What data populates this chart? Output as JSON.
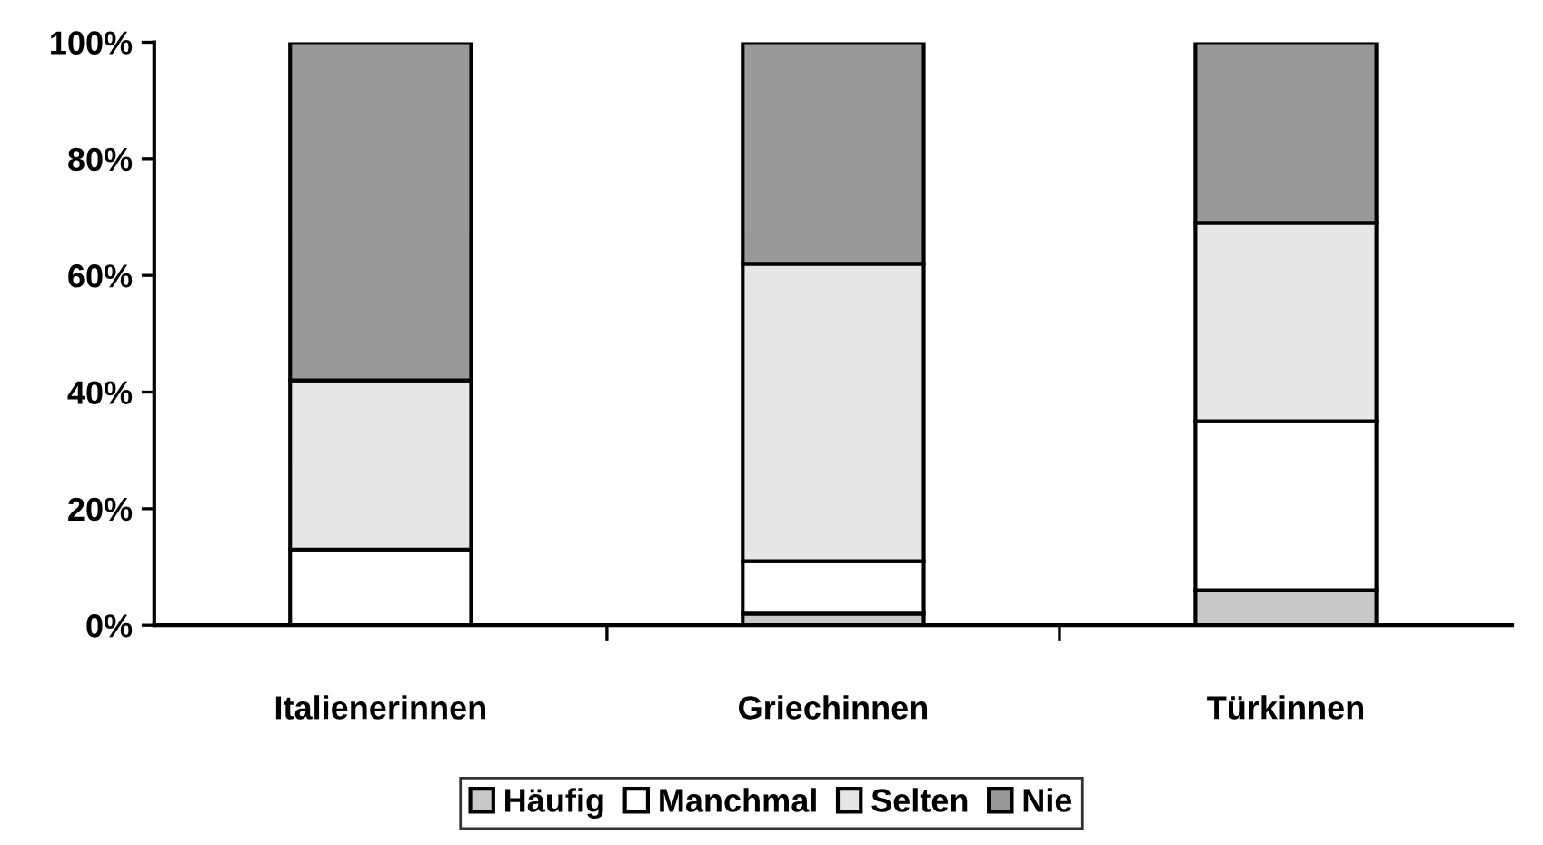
{
  "chart_data": {
    "type": "bar",
    "stacked": true,
    "categories": [
      "Italienerinnen",
      "Griechinnen",
      "Türkinnen"
    ],
    "series": [
      {
        "name": "Häufig",
        "color": "#c8c8c8",
        "values": [
          0,
          2,
          6
        ]
      },
      {
        "name": "Manchmal",
        "color": "#ffffff",
        "values": [
          13,
          9,
          29
        ]
      },
      {
        "name": "Selten",
        "color": "#e6e6e6",
        "values": [
          29,
          51,
          34
        ]
      },
      {
        "name": "Nie",
        "color": "#999999",
        "values": [
          58,
          38,
          31
        ]
      }
    ],
    "ylim": [
      0,
      100
    ],
    "yticks": [
      {
        "value": 0,
        "label": "0%"
      },
      {
        "value": 20,
        "label": "20%"
      },
      {
        "value": 40,
        "label": "40%"
      },
      {
        "value": 60,
        "label": "60%"
      },
      {
        "value": 80,
        "label": "80%"
      },
      {
        "value": 100,
        "label": "100%"
      }
    ],
    "grid": false,
    "legend": "bottom"
  }
}
